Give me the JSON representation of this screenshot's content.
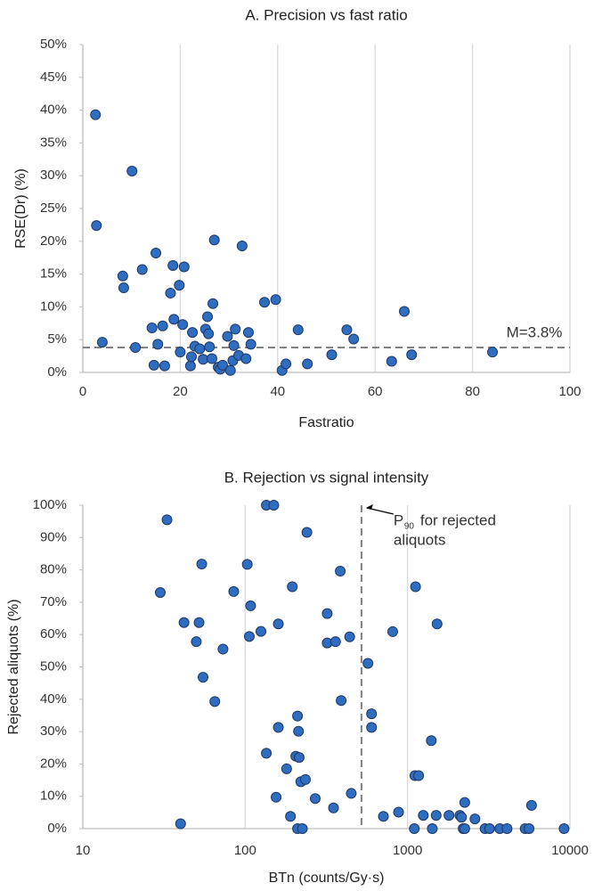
{
  "chart_data": [
    {
      "type": "scatter",
      "title": "A. Precision vs fast ratio",
      "x_label": "Fastratio",
      "y_label": "RSE(Dr) (%)",
      "xlim": [
        0,
        100
      ],
      "xticks": [
        0,
        20,
        40,
        60,
        80,
        100
      ],
      "ylim": [
        0,
        50
      ],
      "yticks": [
        {
          "value": 0,
          "label": "0%"
        },
        {
          "value": 5,
          "label": "5%"
        },
        {
          "value": 10,
          "label": "10%"
        },
        {
          "value": 15,
          "label": "15%"
        },
        {
          "value": 20,
          "label": "20%"
        },
        {
          "value": 25,
          "label": "25%"
        },
        {
          "value": 30,
          "label": "30%"
        },
        {
          "value": 35,
          "label": "35%"
        },
        {
          "value": 40,
          "label": "40%"
        },
        {
          "value": 45,
          "label": "45%"
        },
        {
          "value": 50,
          "label": "50%"
        }
      ],
      "grid": "x",
      "log_x": false,
      "color": "#2e6dbf",
      "reference_line": {
        "axis": "y",
        "value": 3.8,
        "label": "M=3.8%"
      },
      "x": [
        2.6,
        2.8,
        4.0,
        10.1,
        8.2,
        8.4,
        10.8,
        12.2,
        14.2,
        14.6,
        15.0,
        15.4,
        16.4,
        16.8,
        18.0,
        18.5,
        18.7,
        19.8,
        20.0,
        20.5,
        20.8,
        22.1,
        22.3,
        22.5,
        23.0,
        24.0,
        24.7,
        25.2,
        25.6,
        25.8,
        26.0,
        26.5,
        26.7,
        27.0,
        27.8,
        28.2,
        28.7,
        29.7,
        30.3,
        30.8,
        31.0,
        31.3,
        32.0,
        32.7,
        33.5,
        34.0,
        34.5,
        37.3,
        39.6,
        40.9,
        41.7,
        44.2,
        46.1,
        51.1,
        54.2,
        55.6,
        63.4,
        66.0,
        67.5,
        84.1
      ],
      "values": [
        39.3,
        22.4,
        4.6,
        30.7,
        14.7,
        12.9,
        3.8,
        15.7,
        6.8,
        1.1,
        18.2,
        4.3,
        7.1,
        1.0,
        12.1,
        16.3,
        8.1,
        13.3,
        3.1,
        7.3,
        16.1,
        1.0,
        2.4,
        6.1,
        4.0,
        3.6,
        2.0,
        6.6,
        8.5,
        5.9,
        3.9,
        2.1,
        10.5,
        20.2,
        0.8,
        0.5,
        1.1,
        5.5,
        0.3,
        1.8,
        4.1,
        6.6,
        2.6,
        19.3,
        2.1,
        6.1,
        4.3,
        10.7,
        11.1,
        0.3,
        1.3,
        6.5,
        1.3,
        2.7,
        6.5,
        5.1,
        1.7,
        9.3,
        2.7,
        3.1
      ]
    },
    {
      "type": "scatter",
      "title": "B. Rejection vs signal intensity",
      "x_label": "BTn (counts/Gy·s)",
      "y_label": "Rejected aliquots (%)",
      "xlim": [
        10,
        10000
      ],
      "xticks": [
        10,
        100,
        1000,
        10000
      ],
      "ylim": [
        0,
        100
      ],
      "yticks": [
        {
          "value": 0,
          "label": "0%"
        },
        {
          "value": 10,
          "label": "10%"
        },
        {
          "value": 20,
          "label": "20%"
        },
        {
          "value": 30,
          "label": "30%"
        },
        {
          "value": 40,
          "label": "40%"
        },
        {
          "value": 50,
          "label": "50%"
        },
        {
          "value": 60,
          "label": "60%"
        },
        {
          "value": 70,
          "label": "70%"
        },
        {
          "value": 80,
          "label": "80%"
        },
        {
          "value": 90,
          "label": "90%"
        },
        {
          "value": 100,
          "label": "100%"
        }
      ],
      "grid": "x",
      "log_x": true,
      "color": "#2e6dbf",
      "reference_line": {
        "axis": "x",
        "value": 520,
        "label": {
          "text": "P",
          "subscript": "90",
          "lines": [
            "for rejected",
            "aliquots"
          ]
        }
      },
      "x": [
        30,
        33,
        40,
        42,
        50,
        52,
        54,
        55,
        65,
        73,
        85,
        103,
        106,
        108,
        125,
        135,
        135,
        150,
        155,
        160,
        160,
        180,
        190,
        195,
        205,
        210,
        210,
        213,
        215,
        220,
        225,
        235,
        240,
        270,
        320,
        320,
        350,
        360,
        385,
        390,
        440,
        450,
        570,
        600,
        600,
        710,
        810,
        880,
        1100,
        1110,
        1120,
        1170,
        1250,
        1400,
        1420,
        1500,
        1520,
        1800,
        2100,
        2150,
        2200,
        2250,
        2250,
        2600,
        3000,
        3200,
        3700,
        4100,
        5300,
        5600,
        5800,
        9200
      ],
      "values": [
        73,
        95.5,
        1.5,
        63.7,
        57.8,
        63.7,
        81.8,
        46.8,
        39.3,
        55.5,
        73.3,
        81.7,
        59.4,
        68.9,
        61,
        23.3,
        100,
        100,
        9.7,
        63.3,
        31.3,
        18.5,
        3.8,
        74.8,
        22.4,
        0,
        34.8,
        30.1,
        22,
        14.5,
        0,
        15.2,
        91.6,
        9.3,
        66.5,
        57.4,
        6.4,
        57.8,
        79.6,
        39.6,
        59.3,
        10.9,
        51.1,
        35.5,
        31.3,
        3.8,
        60.9,
        5.1,
        0,
        16.4,
        74.8,
        16.4,
        4.1,
        27.2,
        0,
        4.1,
        63.3,
        4.1,
        4.1,
        3.5,
        0,
        0,
        8.1,
        3.0,
        0,
        0,
        0,
        0,
        0,
        0,
        7.2,
        0
      ]
    }
  ]
}
